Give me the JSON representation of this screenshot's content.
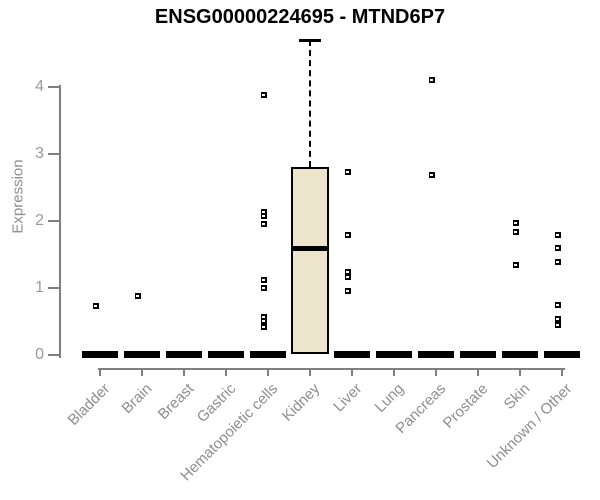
{
  "colors": {
    "title": "#000000",
    "axis_text": "#9a9a9a",
    "axis_line": "#7f7f7f",
    "box_fill": "#ECE5CC",
    "box_line": "#000000",
    "marker": "#000000"
  },
  "chart_data": {
    "type": "boxplot",
    "title": "ENSG00000224695 - MTND6P7",
    "xlabel": "",
    "ylabel": "Expression",
    "ylim": [
      0,
      4.7
    ],
    "yticks": [
      0,
      1,
      2,
      3,
      4
    ],
    "grid": false,
    "legend": false,
    "categories": [
      "Bladder",
      "Brain",
      "Breast",
      "Gastric",
      "Hematopoietic cells",
      "Kidney",
      "Liver",
      "Lung",
      "Pancreas",
      "Prostate",
      "Skin",
      "Unknown / Other"
    ],
    "boxes": [
      {
        "category": "Bladder",
        "median": 0,
        "q1": 0,
        "q3": 0,
        "whisker_low": 0,
        "whisker_high": 0,
        "outliers": [
          0.73
        ]
      },
      {
        "category": "Brain",
        "median": 0,
        "q1": 0,
        "q3": 0,
        "whisker_low": 0,
        "whisker_high": 0,
        "outliers": [
          0.88
        ]
      },
      {
        "category": "Breast",
        "median": 0,
        "q1": 0,
        "q3": 0,
        "whisker_low": 0,
        "whisker_high": 0,
        "outliers": []
      },
      {
        "category": "Gastric",
        "median": 0,
        "q1": 0,
        "q3": 0,
        "whisker_low": 0,
        "whisker_high": 0,
        "outliers": []
      },
      {
        "category": "Hematopoietic cells",
        "median": 0,
        "q1": 0,
        "q3": 0,
        "whisker_low": 0,
        "whisker_high": 0,
        "outliers": [
          3.88,
          2.13,
          2.07,
          1.96,
          1.12,
          1.0,
          0.57,
          0.51,
          0.42
        ]
      },
      {
        "category": "Kidney",
        "median": 1.6,
        "q1": 0.02,
        "q3": 2.8,
        "whisker_low": 0.02,
        "whisker_high": 4.7,
        "outliers": []
      },
      {
        "category": "Liver",
        "median": 0,
        "q1": 0,
        "q3": 0,
        "whisker_low": 0,
        "whisker_high": 0,
        "outliers": [
          2.73,
          1.79,
          1.24,
          1.16,
          0.95
        ]
      },
      {
        "category": "Lung",
        "median": 0,
        "q1": 0,
        "q3": 0,
        "whisker_low": 0,
        "whisker_high": 0,
        "outliers": []
      },
      {
        "category": "Pancreas",
        "median": 0,
        "q1": 0,
        "q3": 0,
        "whisker_low": 0,
        "whisker_high": 0,
        "outliers": [
          4.1,
          2.69
        ]
      },
      {
        "category": "Prostate",
        "median": 0,
        "q1": 0,
        "q3": 0,
        "whisker_low": 0,
        "whisker_high": 0,
        "outliers": []
      },
      {
        "category": "Skin",
        "median": 0,
        "q1": 0,
        "q3": 0,
        "whisker_low": 0,
        "whisker_high": 0,
        "outliers": [
          1.97,
          1.84,
          1.34
        ]
      },
      {
        "category": "Unknown / Other",
        "median": 0,
        "q1": 0,
        "q3": 0,
        "whisker_low": 0,
        "whisker_high": 0,
        "outliers": [
          1.79,
          1.6,
          1.39,
          0.75,
          0.54,
          0.45
        ]
      }
    ]
  }
}
